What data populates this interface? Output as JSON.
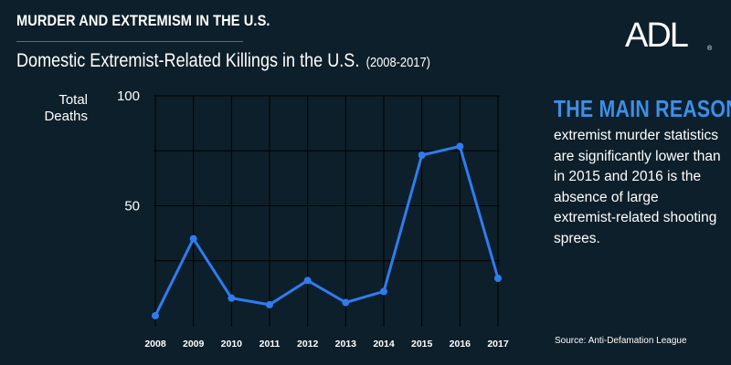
{
  "header": {
    "kicker": "MURDER AND EXTREMISM IN THE U.S.",
    "title": "Domestic Extremist-Related Killings in the U.S.",
    "title_range": "(2008-2017)"
  },
  "logo": {
    "text": "ADL",
    "mark": "®"
  },
  "sidebar": {
    "heading": "THE MAIN REASON",
    "body": "extremist murder statistics are significantly lower than in 2015 and 2016 is the absence of large extremist-related shooting sprees."
  },
  "source": "Source: Anti-Defamation League",
  "colors": {
    "background": "#0d1f2a",
    "accent": "#3d8fe6",
    "line": "#2f7cf0",
    "grid": "#000000",
    "text": "#ffffff"
  },
  "chart_data": {
    "type": "line",
    "title": "Domestic Extremist-Related Killings in the U.S. (2008-2017)",
    "xlabel": "",
    "ylabel": "Total Deaths",
    "ylabel_lines": [
      "Total",
      "Deaths"
    ],
    "categories": [
      "2008",
      "2009",
      "2010",
      "2011",
      "2012",
      "2013",
      "2014",
      "2015",
      "2016",
      "2017"
    ],
    "series": [
      {
        "values": [
          0,
          35,
          8,
          5,
          16,
          6,
          11,
          73,
          77,
          17
        ]
      }
    ],
    "ylim": [
      -5,
      100
    ],
    "yticks": [
      50,
      100
    ],
    "grid": true
  }
}
